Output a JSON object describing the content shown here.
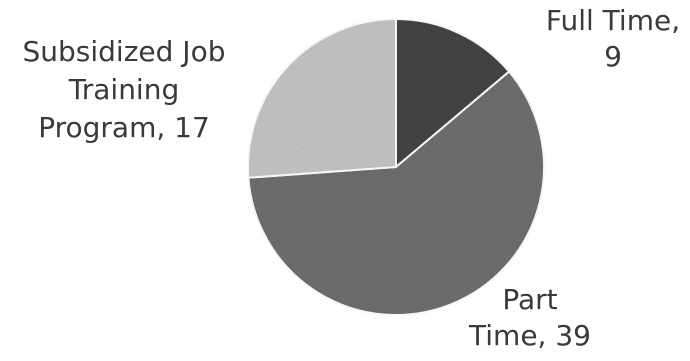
{
  "chart_data": {
    "type": "pie",
    "title": "",
    "slices": [
      {
        "label_lines": [
          "Full Time,",
          "9"
        ],
        "value": 9,
        "color": "#454545"
      },
      {
        "label_lines": [
          "Part",
          "Time, 39"
        ],
        "value": 39,
        "color": "#6f6f6f"
      },
      {
        "label_lines": [
          "Subsidized Job",
          "Training",
          "Program, 17"
        ],
        "value": 17,
        "color": "#c6c6c6"
      }
    ],
    "start_angle_deg": 0,
    "direction": "clockwise",
    "legend": "none",
    "label_placement": "outside"
  }
}
